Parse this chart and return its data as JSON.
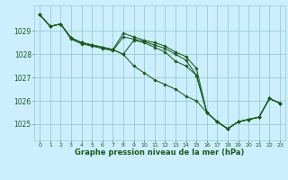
{
  "background_color": "#cceeff",
  "grid_color": "#99cccc",
  "line_color": "#1a5c1a",
  "marker_color": "#1a5c1a",
  "xlabel": "Graphe pression niveau de la mer (hPa)",
  "xlabel_color": "#1a5c1a",
  "ylim": [
    1024.3,
    1030.1
  ],
  "xlim": [
    -0.5,
    23.5
  ],
  "yticks": [
    1025,
    1026,
    1027,
    1028,
    1029
  ],
  "xticks": [
    0,
    1,
    2,
    3,
    4,
    5,
    6,
    7,
    8,
    9,
    10,
    11,
    12,
    13,
    14,
    15,
    16,
    17,
    18,
    19,
    20,
    21,
    22,
    23
  ],
  "series": [
    [
      1029.7,
      1029.2,
      1029.3,
      1028.7,
      1028.5,
      1028.4,
      1028.3,
      1028.2,
      1028.0,
      1028.6,
      1028.5,
      1028.3,
      1028.1,
      1027.7,
      1027.5,
      1027.1,
      1025.5,
      1025.1,
      1024.8,
      1025.1,
      1025.2,
      1025.3,
      1026.1,
      1025.9
    ],
    [
      1029.7,
      1029.2,
      1029.3,
      1028.65,
      1028.45,
      1028.35,
      1028.25,
      1028.15,
      1028.75,
      1028.65,
      1028.55,
      1028.4,
      1028.25,
      1028.0,
      1027.75,
      1027.1,
      1025.5,
      1025.1,
      1024.8,
      1025.1,
      1025.2,
      1025.3,
      1026.1,
      1025.9
    ],
    [
      1029.7,
      1029.2,
      1029.3,
      1028.7,
      1028.5,
      1028.4,
      1028.3,
      1028.2,
      1028.9,
      1028.75,
      1028.6,
      1028.5,
      1028.35,
      1028.1,
      1027.9,
      1027.4,
      1025.5,
      1025.1,
      1024.8,
      1025.1,
      1025.2,
      1025.3,
      1026.1,
      1025.9
    ],
    [
      1029.7,
      1029.2,
      1029.3,
      1028.7,
      1028.5,
      1028.4,
      1028.3,
      1028.2,
      1028.0,
      1027.5,
      1027.2,
      1026.9,
      1026.7,
      1026.5,
      1026.2,
      1026.0,
      1025.5,
      1025.1,
      1024.8,
      1025.1,
      1025.2,
      1025.3,
      1026.1,
      1025.9
    ]
  ]
}
